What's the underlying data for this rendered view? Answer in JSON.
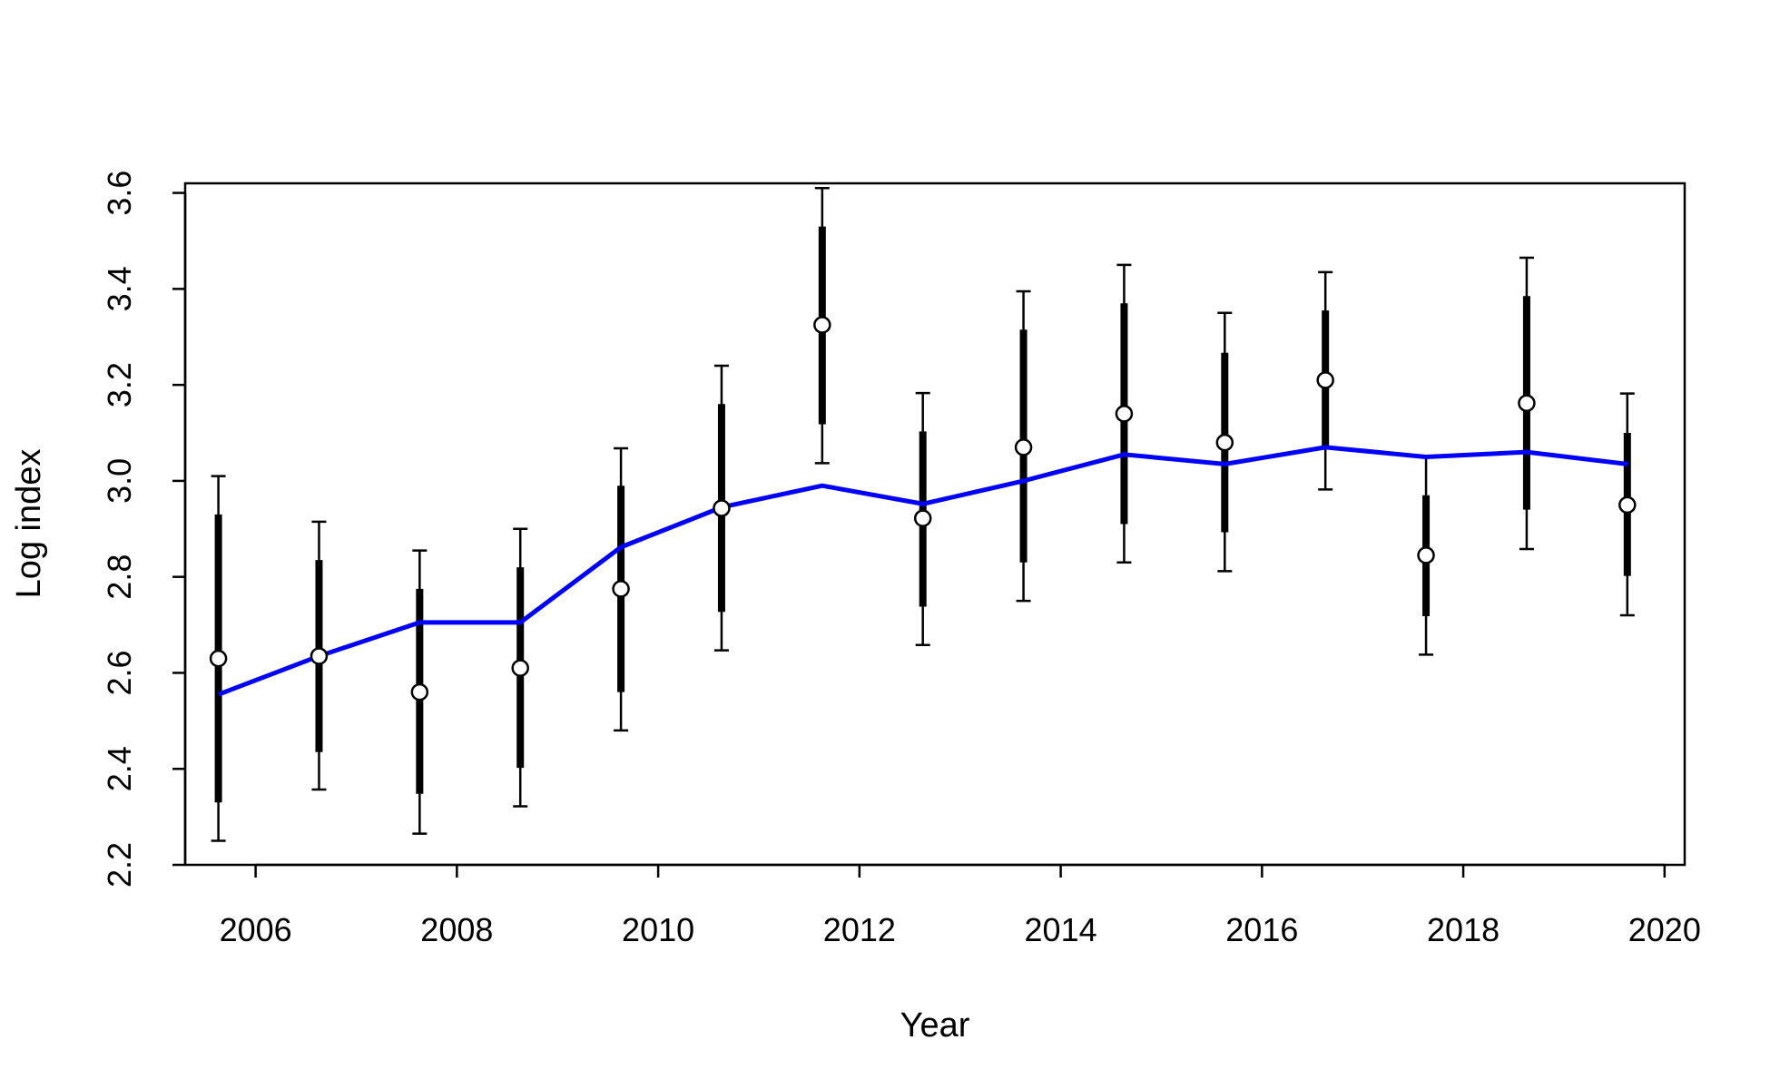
{
  "chart_data": {
    "type": "line",
    "xlabel": "Year",
    "ylabel": "Log index",
    "xlim": [
      2005.3,
      2020.2
    ],
    "ylim": [
      2.2,
      3.62
    ],
    "xticks": [
      "2006",
      "2008",
      "2010",
      "2012",
      "2014",
      "2016",
      "2018",
      "2020"
    ],
    "yticks": [
      "2.2",
      "2.4",
      "2.6",
      "2.8",
      "3.0",
      "3.2",
      "3.4",
      "3.6"
    ],
    "grid": false,
    "legend": "none",
    "colors": {
      "fitted_line": "#0000ff",
      "observed": "#000000",
      "point_fill": "#ffffff"
    },
    "series": [
      {
        "type": "line",
        "x": [
          2005.63,
          2006.63,
          2007.63,
          2008.63,
          2009.63,
          2010.63,
          2011.63,
          2012.63,
          2013.63,
          2014.63,
          2015.63,
          2016.63,
          2017.63,
          2018.63,
          2019.63
        ],
        "values": [
          2.555,
          2.635,
          2.705,
          2.705,
          2.862,
          2.945,
          2.99,
          2.952,
          3.0,
          3.055,
          3.035,
          3.07,
          3.05,
          3.06,
          3.035
        ]
      },
      {
        "type": "scatter",
        "x": [
          2005.63,
          2006.63,
          2007.63,
          2008.63,
          2009.63,
          2010.63,
          2011.63,
          2012.63,
          2013.63,
          2014.63,
          2015.63,
          2016.63,
          2017.63,
          2018.63,
          2019.63
        ],
        "values": [
          2.63,
          2.635,
          2.56,
          2.61,
          2.775,
          2.943,
          3.325,
          2.922,
          3.07,
          3.14,
          3.08,
          3.21,
          2.845,
          3.162,
          2.95
        ],
        "ci_inner_low": [
          2.33,
          2.435,
          2.348,
          2.402,
          2.56,
          2.727,
          3.118,
          2.738,
          2.83,
          2.91,
          2.893,
          3.065,
          2.718,
          2.94,
          2.802
        ],
        "ci_inner_high": [
          2.93,
          2.835,
          2.775,
          2.82,
          2.99,
          3.16,
          3.53,
          3.103,
          3.315,
          3.37,
          3.267,
          3.355,
          2.97,
          3.385,
          3.1
        ],
        "ci_outer_low": [
          2.25,
          2.357,
          2.265,
          2.322,
          2.48,
          2.647,
          3.037,
          2.658,
          2.75,
          2.83,
          2.812,
          2.982,
          2.638,
          2.858,
          2.72
        ],
        "ci_outer_high": [
          3.01,
          2.915,
          2.855,
          2.9,
          3.068,
          3.24,
          3.61,
          3.183,
          3.395,
          3.45,
          3.35,
          3.435,
          3.05,
          3.465,
          3.182
        ]
      }
    ]
  }
}
